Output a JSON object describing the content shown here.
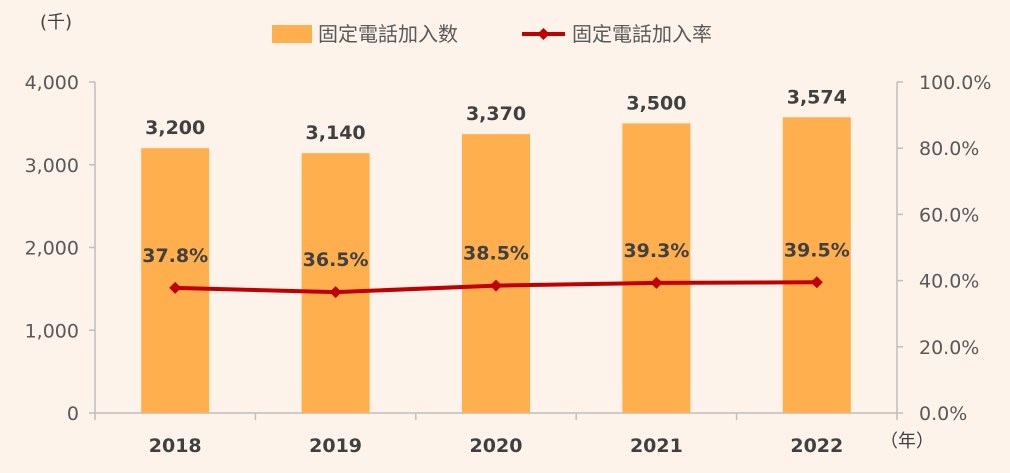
{
  "chart_data": {
    "type": "bar",
    "categories": [
      "2018",
      "2019",
      "2020",
      "2021",
      "2022"
    ],
    "series": [
      {
        "name": "固定電話加入数",
        "type": "bar",
        "axis": "left",
        "values": [
          3200,
          3140,
          3370,
          3500,
          3574
        ],
        "labels": [
          "3,200",
          "3,140",
          "3,370",
          "3,500",
          "3,574"
        ],
        "color": "#FFAF4D"
      },
      {
        "name": "固定電話加入率",
        "type": "line",
        "axis": "right",
        "values": [
          37.8,
          36.5,
          38.5,
          39.3,
          39.5
        ],
        "labels": [
          "37.8%",
          "36.5%",
          "38.5%",
          "39.3%",
          "39.5%"
        ],
        "color": "#C00000"
      }
    ],
    "left_axis": {
      "unit": "(千)",
      "ylim": [
        0,
        4000
      ],
      "ticks": [
        0,
        1000,
        2000,
        3000,
        4000
      ],
      "tick_labels": [
        "0",
        "1,000",
        "2,000",
        "3,000",
        "4,000"
      ]
    },
    "right_axis": {
      "ylim": [
        0,
        100
      ],
      "ticks": [
        0,
        20,
        40,
        60,
        80,
        100
      ],
      "tick_labels": [
        "0.0%",
        "20.0%",
        "40.0%",
        "60.0%",
        "80.0%",
        "100.0%"
      ]
    },
    "x_unit": "（年）",
    "legend_position": "top",
    "grid": false
  }
}
